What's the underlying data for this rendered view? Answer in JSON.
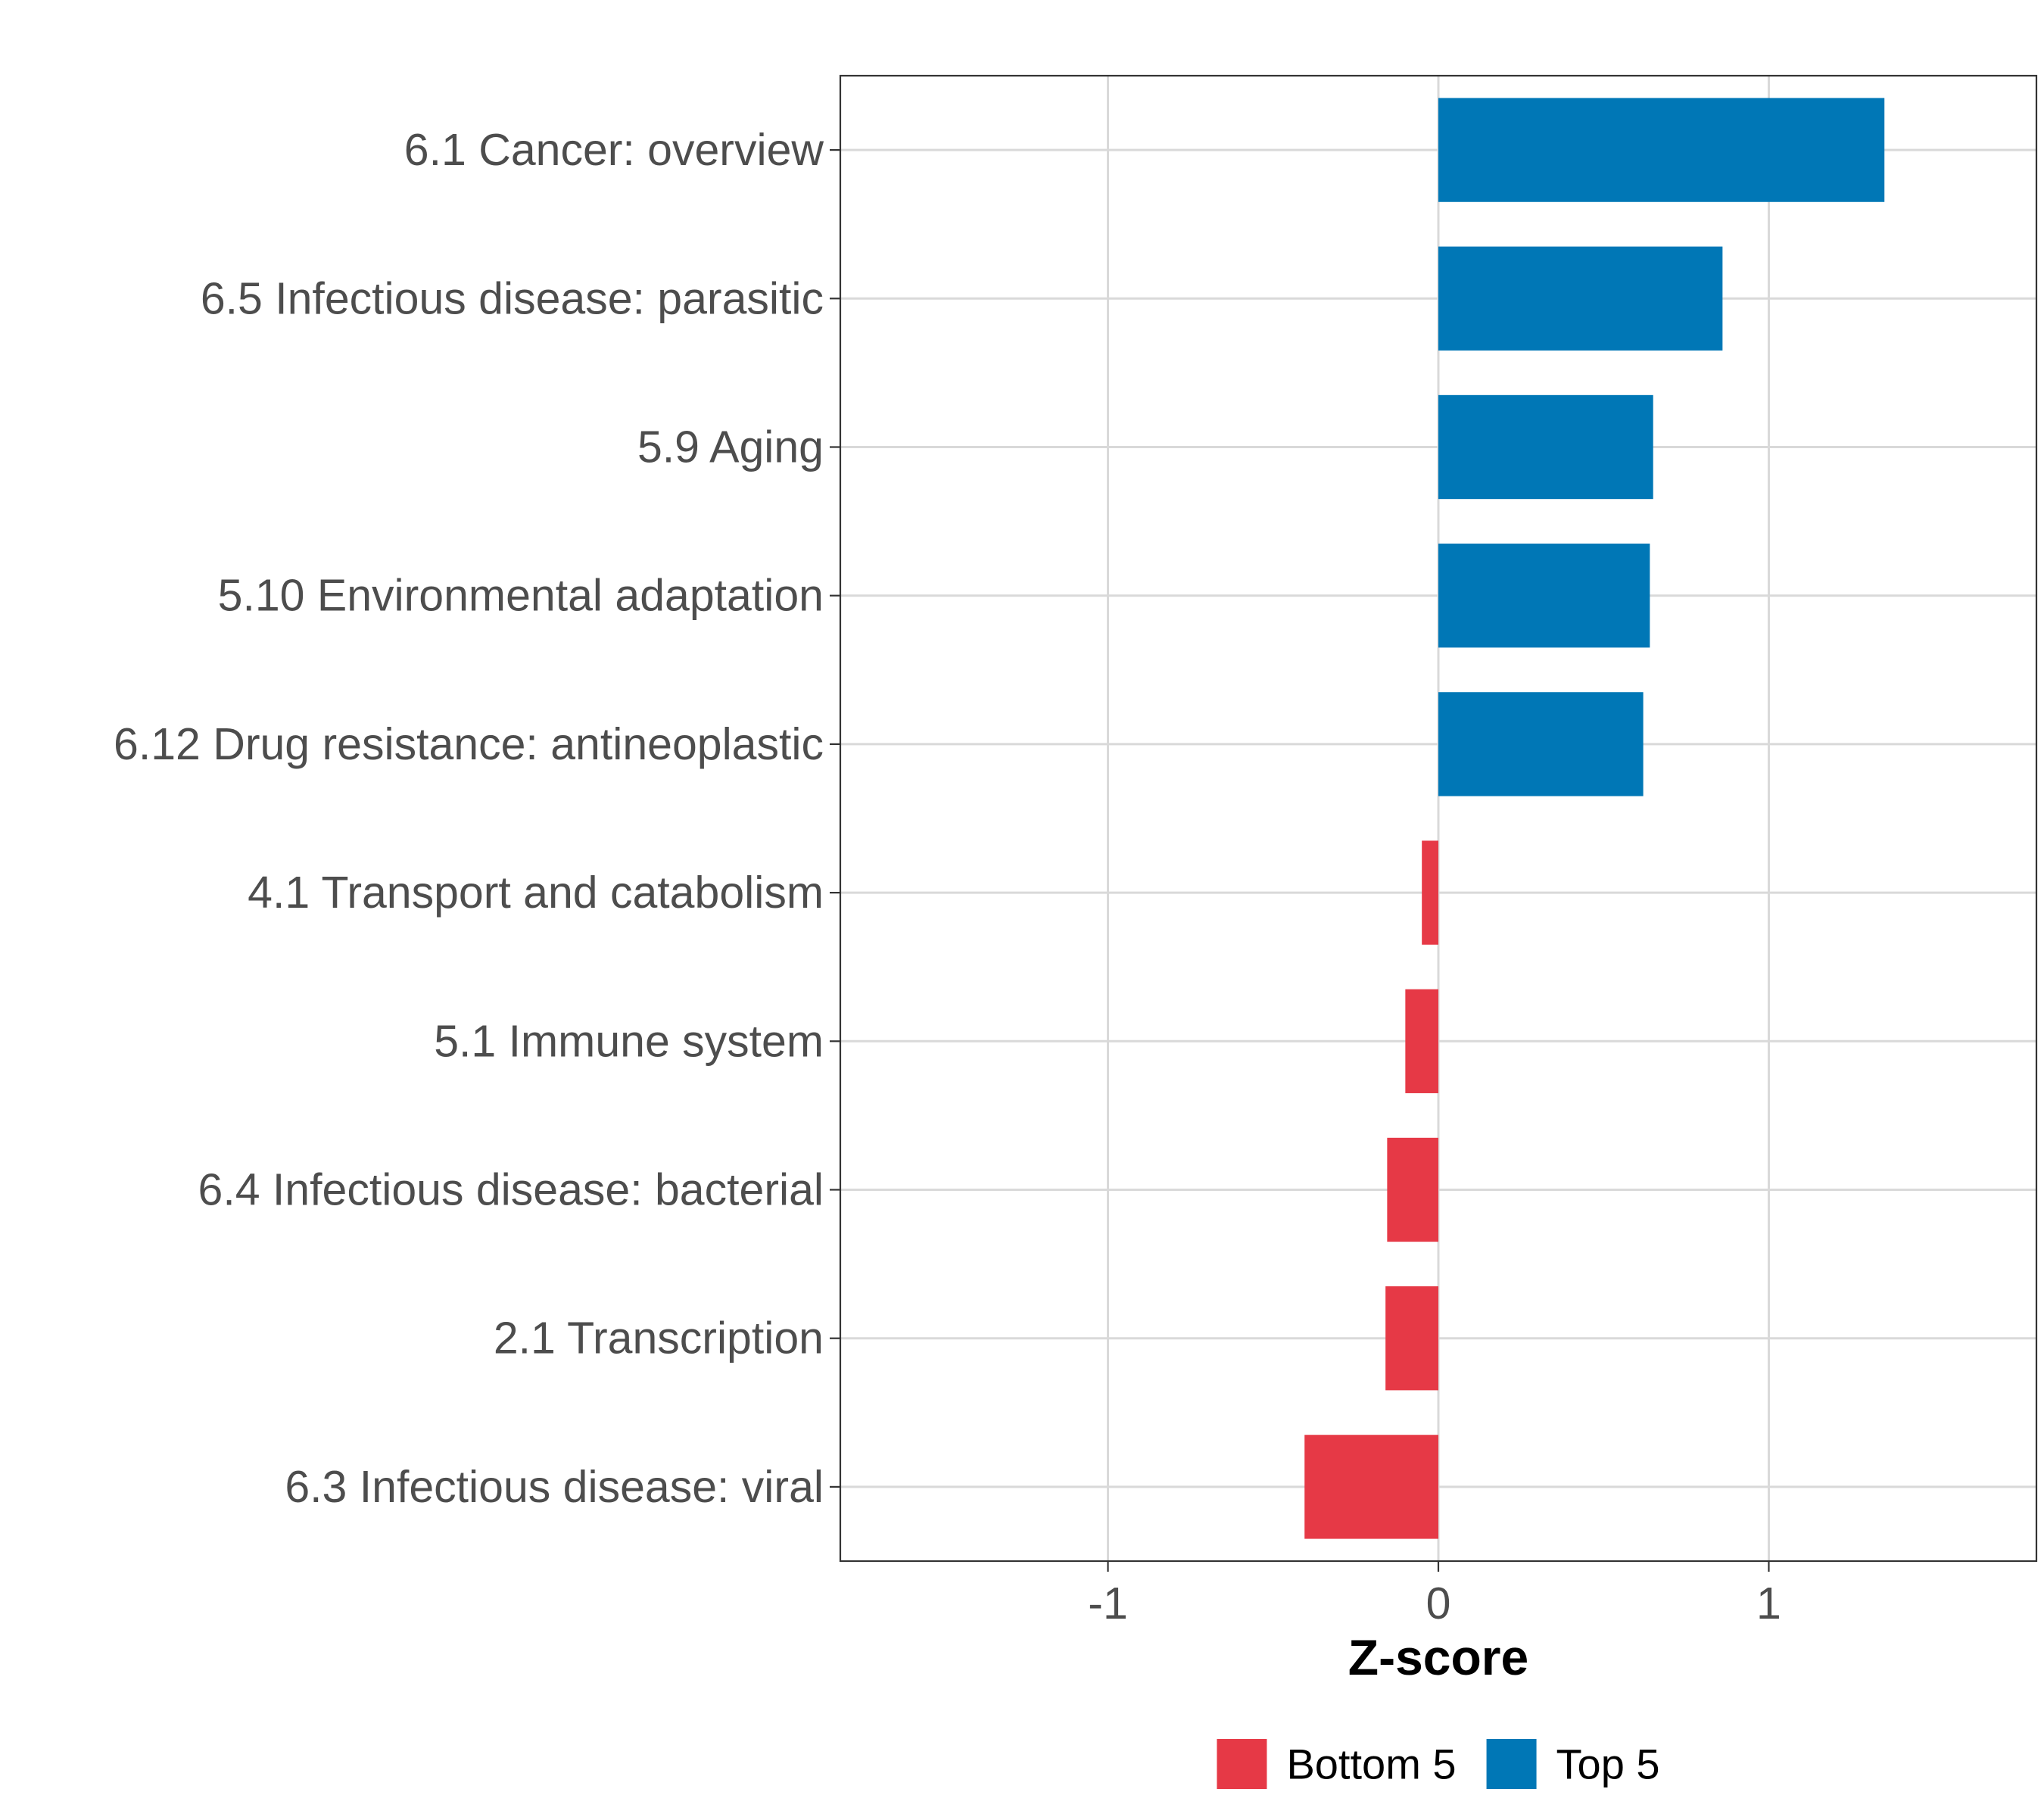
{
  "chart_data": {
    "type": "bar",
    "orientation": "horizontal",
    "title": "",
    "xlabel": "Z-score",
    "ylabel": "",
    "xlim": [
      -1.81,
      1.81
    ],
    "xticks": [
      -1,
      0,
      1
    ],
    "xtick_labels": [
      "-1",
      "0",
      "1"
    ],
    "grid": true,
    "legend_position": "bottom",
    "categories": [
      "6.1 Cancer: overview",
      "6.5 Infectious disease: parasitic",
      "5.9 Aging",
      "5.10 Environmental adaptation",
      "6.12 Drug resistance: antineoplastic",
      "4.1 Transport and catabolism",
      "5.1 Immune system",
      "6.4 Infectious disease: bacterial",
      "2.1 Transcription",
      "6.3 Infectious disease: viral"
    ],
    "values": [
      1.35,
      0.86,
      0.65,
      0.64,
      0.62,
      -0.05,
      -0.1,
      -0.155,
      -0.16,
      -0.405
    ],
    "groups": [
      "Top 5",
      "Top 5",
      "Top 5",
      "Top 5",
      "Top 5",
      "Bottom 5",
      "Bottom 5",
      "Bottom 5",
      "Bottom 5",
      "Bottom 5"
    ],
    "legend": [
      {
        "name": "Bottom 5",
        "color": "#e63946"
      },
      {
        "name": "Top 5",
        "color": "#0077b6"
      }
    ]
  }
}
